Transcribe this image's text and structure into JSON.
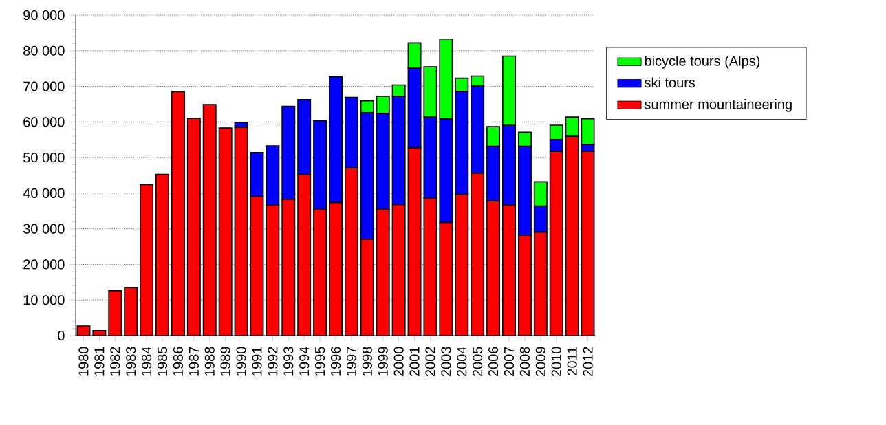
{
  "chart_data": {
    "type": "bar",
    "stacked": true,
    "categories": [
      "1980",
      "1981",
      "1982",
      "1983",
      "1984",
      "1985",
      "1986",
      "1987",
      "1988",
      "1989",
      "1990",
      "1991",
      "1992",
      "1993",
      "1994",
      "1995",
      "1996",
      "1997",
      "1998",
      "1999",
      "2000",
      "2001",
      "2002",
      "2003",
      "2004",
      "2005",
      "2006",
      "2007",
      "2008",
      "2009",
      "2010",
      "2011",
      "2012"
    ],
    "series": [
      {
        "name": "summer mountaineering",
        "color": "#ff0000",
        "values": [
          2700,
          1400,
          12600,
          13500,
          42400,
          45300,
          68500,
          61000,
          64900,
          58300,
          58600,
          39100,
          36700,
          38300,
          45300,
          35500,
          37400,
          47100,
          27100,
          35500,
          36800,
          52800,
          38600,
          31800,
          39700,
          45600,
          37800,
          36700,
          28200,
          29100,
          51700,
          56000,
          51700
        ]
      },
      {
        "name": "ski tours",
        "color": "#0000ff",
        "values": [
          null,
          null,
          null,
          null,
          null,
          null,
          null,
          null,
          null,
          null,
          1300,
          12300,
          16600,
          26100,
          21000,
          24800,
          35300,
          19800,
          35500,
          26900,
          30400,
          22300,
          22800,
          29100,
          28900,
          24500,
          15400,
          22400,
          25000,
          7300,
          3400,
          null,
          2000
        ]
      },
      {
        "name": "bicycle tours (Alps)",
        "color": "#00ff00",
        "values": [
          null,
          null,
          null,
          null,
          null,
          null,
          null,
          null,
          null,
          null,
          null,
          null,
          null,
          null,
          null,
          null,
          null,
          null,
          3300,
          4800,
          3200,
          7100,
          14100,
          22400,
          3700,
          2800,
          5500,
          19400,
          3900,
          6800,
          4000,
          5400,
          7200
        ]
      }
    ],
    "ylim": [
      0,
      90000
    ],
    "yticks": [
      {
        "value": 0,
        "label": "0"
      },
      {
        "value": 10000,
        "label": "10 000"
      },
      {
        "value": 20000,
        "label": "20 000"
      },
      {
        "value": 30000,
        "label": "30 000"
      },
      {
        "value": 40000,
        "label": "40 000"
      },
      {
        "value": 50000,
        "label": "50 000"
      },
      {
        "value": 60000,
        "label": "60 000"
      },
      {
        "value": 70000,
        "label": "70 000"
      },
      {
        "value": 80000,
        "label": "80 000"
      },
      {
        "value": 90000,
        "label": "90 000"
      }
    ],
    "grid": "y",
    "legend": "right"
  }
}
